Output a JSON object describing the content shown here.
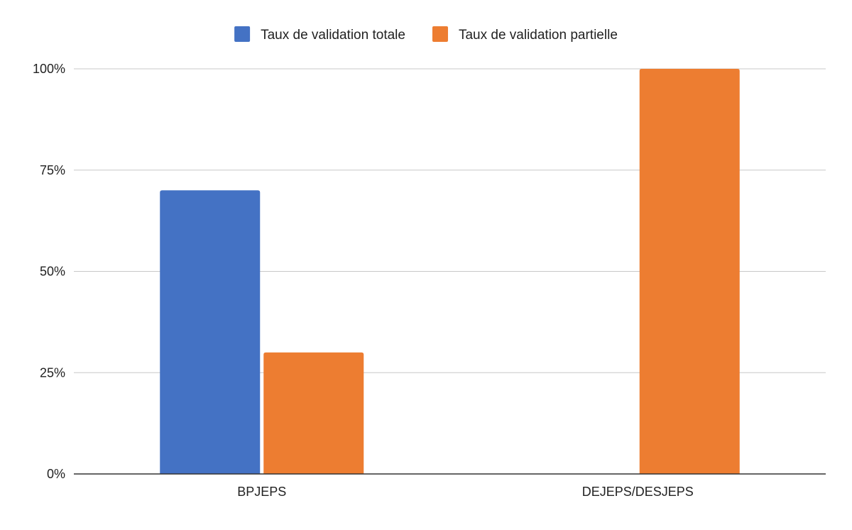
{
  "chart_data": {
    "type": "bar",
    "title": "",
    "xlabel": "",
    "ylabel": "",
    "categories": [
      "BPJEPS",
      "DEJEPS/DESJEPS"
    ],
    "series": [
      {
        "name": "Taux de validation totale",
        "values": [
          0.7,
          0
        ],
        "color": "#4472c4"
      },
      {
        "name": "Taux de validation partielle",
        "values": [
          0.3,
          1.0
        ],
        "color": "#ed7d31"
      }
    ],
    "ylim": [
      0,
      1
    ],
    "y_ticks": [
      0,
      0.25,
      0.5,
      0.75,
      1
    ],
    "y_tick_labels": [
      "0%",
      "25%",
      "50%",
      "75%",
      "100%"
    ],
    "y_format": "percent",
    "grid": true,
    "legend_position": "top-center",
    "colors": {
      "gridline": "#c8c8c8",
      "axis": "#333333",
      "text": "#222222"
    }
  }
}
